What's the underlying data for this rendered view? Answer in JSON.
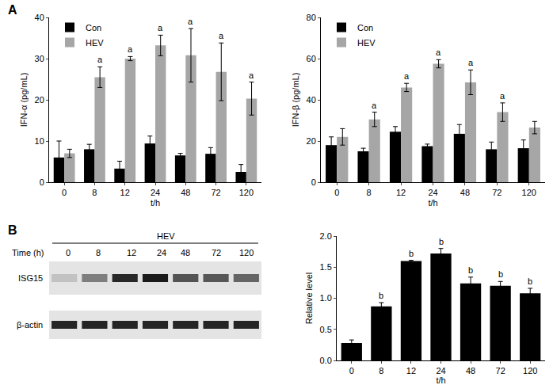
{
  "panel_labels": [
    "A",
    "B"
  ],
  "chart_data": [
    {
      "type": "bar",
      "y_label": "IFN-α (pg/mL)",
      "x_label": "t/h",
      "categories": [
        "0",
        "8",
        "12",
        "24",
        "48",
        "72",
        "120"
      ],
      "series": [
        {
          "name": "Con",
          "color": "#000000",
          "values": [
            6,
            8,
            3.3,
            9.4,
            6.5,
            6.9,
            2.5
          ],
          "error": [
            4,
            1.2,
            1.8,
            1.8,
            0.5,
            1.5,
            1.8
          ]
        },
        {
          "name": "HEV",
          "color": "#a6a6a6",
          "values": [
            7,
            25.5,
            30,
            33.2,
            30.8,
            26.8,
            20.3
          ],
          "error": [
            1,
            2.5,
            0.5,
            2.5,
            6.5,
            7,
            4
          ],
          "significance": [
            null,
            "a",
            "a",
            "a",
            "a",
            "a",
            "a"
          ]
        }
      ],
      "ylim": [
        0,
        40
      ],
      "yticks": [
        0,
        10,
        20,
        30,
        40
      ],
      "grid": false,
      "legend": "upper left"
    },
    {
      "type": "bar",
      "y_label": "IFN-β (pg/mL)",
      "x_label": "t/h",
      "categories": [
        "0",
        "8",
        "12",
        "24",
        "48",
        "72",
        "120"
      ],
      "series": [
        {
          "name": "Con",
          "color": "#000000",
          "values": [
            18,
            15,
            24.5,
            17.5,
            23.5,
            16,
            16.5
          ],
          "error": [
            4,
            1.5,
            2.5,
            1,
            4.5,
            3.5,
            4
          ]
        },
        {
          "name": "HEV",
          "color": "#a6a6a6",
          "values": [
            22,
            30.5,
            46,
            57.5,
            48.5,
            34,
            26.5
          ],
          "error": [
            4,
            3.5,
            2,
            2,
            6,
            4.5,
            3
          ],
          "significance": [
            null,
            "a",
            "a",
            "a",
            "a",
            "a",
            null
          ]
        }
      ],
      "ylim": [
        0,
        80
      ],
      "yticks": [
        0,
        20,
        40,
        60,
        80
      ],
      "grid": false,
      "legend": "upper left"
    },
    {
      "type": "bar",
      "y_label": "Relative level",
      "x_label": "t/h",
      "categories": [
        "0",
        "8",
        "12",
        "24",
        "48",
        "72",
        "120"
      ],
      "series": [
        {
          "color": "#000000",
          "values": [
            0.28,
            0.87,
            1.6,
            1.72,
            1.24,
            1.2,
            1.08
          ],
          "error": [
            0.05,
            0.06,
            0.01,
            0.08,
            0.1,
            0.07,
            0.08
          ],
          "significance": [
            null,
            "b",
            "b",
            "b",
            "b",
            "b",
            "b"
          ]
        }
      ],
      "ylim": [
        0,
        2
      ],
      "yticks": [
        {
          "value": 0,
          "label": "0.0"
        },
        {
          "value": 0.5,
          "label": "0.5"
        },
        {
          "value": 1,
          "label": "1.0"
        },
        {
          "value": 1.5,
          "label": "1.5"
        },
        {
          "value": 2,
          "label": "2.0"
        }
      ],
      "grid": false
    }
  ],
  "blot": {
    "group_label": "HEV",
    "time_label": "Time (h)",
    "lanes": [
      "0",
      "8",
      "12",
      "24",
      "48",
      "72",
      "120"
    ],
    "rows": [
      "ISG15",
      "β-actin"
    ]
  }
}
